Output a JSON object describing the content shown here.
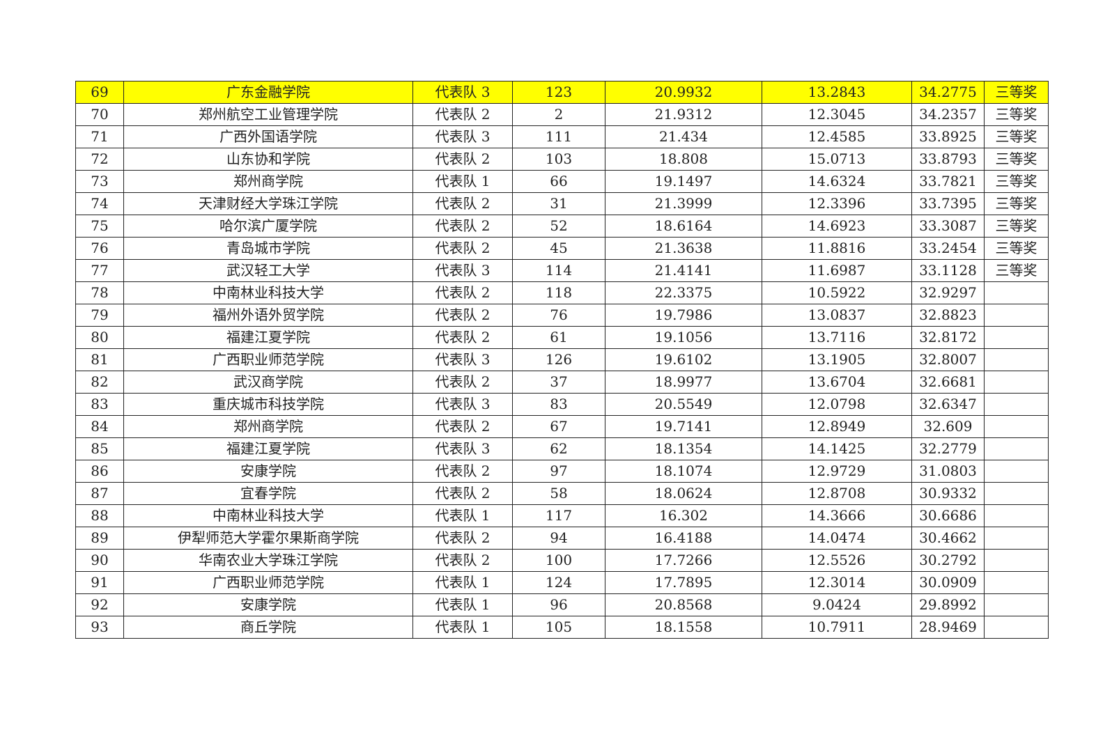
{
  "highlight_color": "#ffff00",
  "rows": [
    {
      "rank": "69",
      "school": "广东金融学院",
      "team": "代表队 3",
      "id": "123",
      "s1": "20.9932",
      "s2": "13.2843",
      "total": "34.2775",
      "award": "三等奖",
      "highlight": true
    },
    {
      "rank": "70",
      "school": "郑州航空工业管理学院",
      "team": "代表队 2",
      "id": "2",
      "s1": "21.9312",
      "s2": "12.3045",
      "total": "34.2357",
      "award": "三等奖"
    },
    {
      "rank": "71",
      "school": "广西外国语学院",
      "team": "代表队 3",
      "id": "111",
      "s1": "21.434",
      "s2": "12.4585",
      "total": "33.8925",
      "award": "三等奖"
    },
    {
      "rank": "72",
      "school": "山东协和学院",
      "team": "代表队 2",
      "id": "103",
      "s1": "18.808",
      "s2": "15.0713",
      "total": "33.8793",
      "award": "三等奖"
    },
    {
      "rank": "73",
      "school": "郑州商学院",
      "team": "代表队 1",
      "id": "66",
      "s1": "19.1497",
      "s2": "14.6324",
      "total": "33.7821",
      "award": "三等奖"
    },
    {
      "rank": "74",
      "school": "天津财经大学珠江学院",
      "team": "代表队 2",
      "id": "31",
      "s1": "21.3999",
      "s2": "12.3396",
      "total": "33.7395",
      "award": "三等奖"
    },
    {
      "rank": "75",
      "school": "哈尔滨广厦学院",
      "team": "代表队 2",
      "id": "52",
      "s1": "18.6164",
      "s2": "14.6923",
      "total": "33.3087",
      "award": "三等奖"
    },
    {
      "rank": "76",
      "school": "青岛城市学院",
      "team": "代表队 2",
      "id": "45",
      "s1": "21.3638",
      "s2": "11.8816",
      "total": "33.2454",
      "award": "三等奖"
    },
    {
      "rank": "77",
      "school": "武汉轻工大学",
      "team": "代表队 3",
      "id": "114",
      "s1": "21.4141",
      "s2": "11.6987",
      "total": "33.1128",
      "award": "三等奖"
    },
    {
      "rank": "78",
      "school": "中南林业科技大学",
      "team": "代表队 2",
      "id": "118",
      "s1": "22.3375",
      "s2": "10.5922",
      "total": "32.9297",
      "award": ""
    },
    {
      "rank": "79",
      "school": "福州外语外贸学院",
      "team": "代表队 2",
      "id": "76",
      "s1": "19.7986",
      "s2": "13.0837",
      "total": "32.8823",
      "award": ""
    },
    {
      "rank": "80",
      "school": "福建江夏学院",
      "team": "代表队 2",
      "id": "61",
      "s1": "19.1056",
      "s2": "13.7116",
      "total": "32.8172",
      "award": ""
    },
    {
      "rank": "81",
      "school": "广西职业师范学院",
      "team": "代表队 3",
      "id": "126",
      "s1": "19.6102",
      "s2": "13.1905",
      "total": "32.8007",
      "award": ""
    },
    {
      "rank": "82",
      "school": "武汉商学院",
      "team": "代表队 2",
      "id": "37",
      "s1": "18.9977",
      "s2": "13.6704",
      "total": "32.6681",
      "award": ""
    },
    {
      "rank": "83",
      "school": "重庆城市科技学院",
      "team": "代表队 3",
      "id": "83",
      "s1": "20.5549",
      "s2": "12.0798",
      "total": "32.6347",
      "award": ""
    },
    {
      "rank": "84",
      "school": "郑州商学院",
      "team": "代表队 2",
      "id": "67",
      "s1": "19.7141",
      "s2": "12.8949",
      "total": "32.609",
      "award": ""
    },
    {
      "rank": "85",
      "school": "福建江夏学院",
      "team": "代表队 3",
      "id": "62",
      "s1": "18.1354",
      "s2": "14.1425",
      "total": "32.2779",
      "award": ""
    },
    {
      "rank": "86",
      "school": "安康学院",
      "team": "代表队 2",
      "id": "97",
      "s1": "18.1074",
      "s2": "12.9729",
      "total": "31.0803",
      "award": ""
    },
    {
      "rank": "87",
      "school": "宜春学院",
      "team": "代表队 2",
      "id": "58",
      "s1": "18.0624",
      "s2": "12.8708",
      "total": "30.9332",
      "award": ""
    },
    {
      "rank": "88",
      "school": "中南林业科技大学",
      "team": "代表队 1",
      "id": "117",
      "s1": "16.302",
      "s2": "14.3666",
      "total": "30.6686",
      "award": ""
    },
    {
      "rank": "89",
      "school": "伊犁师范大学霍尔果斯商学院",
      "team": "代表队 2",
      "id": "94",
      "s1": "16.4188",
      "s2": "14.0474",
      "total": "30.4662",
      "award": ""
    },
    {
      "rank": "90",
      "school": "华南农业大学珠江学院",
      "team": "代表队 2",
      "id": "100",
      "s1": "17.7266",
      "s2": "12.5526",
      "total": "30.2792",
      "award": ""
    },
    {
      "rank": "91",
      "school": "广西职业师范学院",
      "team": "代表队 1",
      "id": "124",
      "s1": "17.7895",
      "s2": "12.3014",
      "total": "30.0909",
      "award": ""
    },
    {
      "rank": "92",
      "school": "安康学院",
      "team": "代表队 1",
      "id": "96",
      "s1": "20.8568",
      "s2": "9.0424",
      "total": "29.8992",
      "award": ""
    },
    {
      "rank": "93",
      "school": "商丘学院",
      "team": "代表队 1",
      "id": "105",
      "s1": "18.1558",
      "s2": "10.7911",
      "total": "28.9469",
      "award": ""
    }
  ]
}
